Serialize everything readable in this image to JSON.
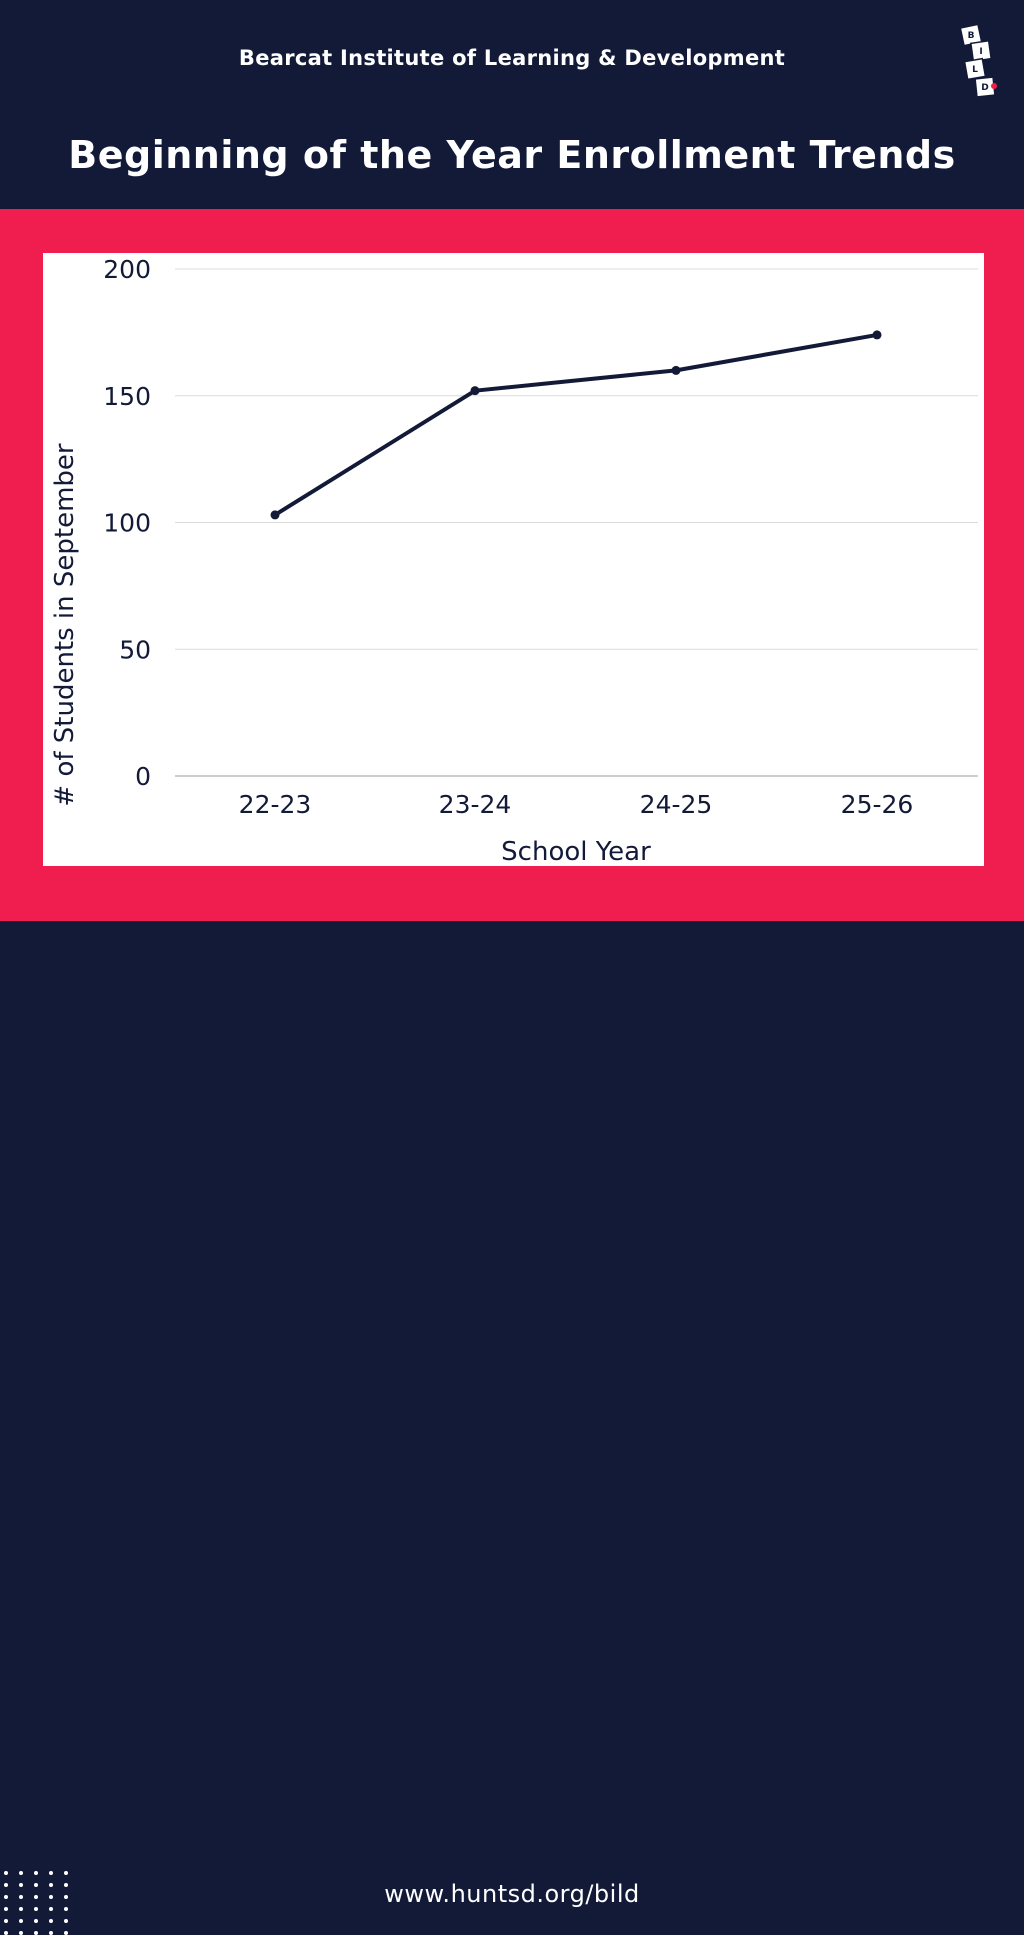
{
  "header": {
    "organization": "Bearcat Institute of Learning & Development",
    "title": "Beginning of the Year Enrollment Trends",
    "logo": {
      "icon": "bild-blocks-logo",
      "letters": [
        "B",
        "I",
        "L",
        "D"
      ],
      "accent": "#ef1e4f"
    }
  },
  "footer": {
    "url": "www.huntsd.org/bild",
    "decoration": "dot-grid-icon"
  },
  "colors": {
    "navy": "#121a38",
    "red": "#ef1e4f",
    "white": "#ffffff",
    "line": "#121a38",
    "grid": "#dcdcdc"
  },
  "chart_data": {
    "type": "line",
    "categories": [
      "22-23",
      "23-24",
      "24-25",
      "25-26"
    ],
    "series": [
      {
        "values": [
          103,
          152,
          160,
          174
        ]
      }
    ],
    "xlabel": "School Year",
    "ylabel": "# of Students in September",
    "ylim": [
      0,
      200
    ],
    "yticks": [
      0,
      50,
      100,
      150,
      200
    ],
    "grid": true,
    "legend": "none",
    "markers": true
  }
}
